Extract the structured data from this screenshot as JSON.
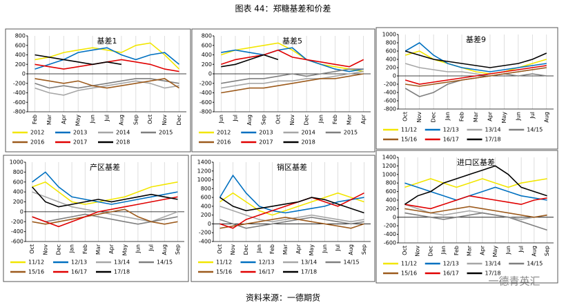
{
  "title": "图表 44：郑糖基差和价差",
  "source": "资料来源：一德期货",
  "watermark": "一德青英汇",
  "chart_data": [
    {
      "type": "line",
      "title": "基差1",
      "categories": [
        "Feb",
        "Mar",
        "Apr",
        "May",
        "Jun",
        "Jul",
        "Aug",
        "Sep",
        "Oct",
        "Nov",
        "Dec"
      ],
      "ylim": [
        -800,
        800
      ],
      "yticks": [
        -800,
        -600,
        -400,
        -200,
        0,
        200,
        400,
        600,
        800
      ],
      "grid": "x",
      "series": [
        {
          "name": "2012",
          "color": "#f2e600",
          "values": [
            300,
            350,
            450,
            500,
            550,
            500,
            450,
            600,
            650,
            400,
            100
          ]
        },
        {
          "name": "2013",
          "color": "#0070c0",
          "values": [
            100,
            200,
            300,
            450,
            500,
            550,
            400,
            300,
            400,
            450,
            200
          ]
        },
        {
          "name": "2014",
          "color": "#a6a6a6",
          "values": [
            -300,
            -400,
            -450,
            -350,
            -300,
            -250,
            -200,
            -150,
            -200,
            -300,
            -250
          ]
        },
        {
          "name": "2015",
          "color": "#7f7f7f",
          "values": [
            -200,
            -300,
            -250,
            -300,
            -250,
            -200,
            -150,
            -100,
            -100,
            -150,
            -200
          ]
        },
        {
          "name": "2016",
          "color": "#9c5a1c",
          "values": [
            -100,
            -150,
            -200,
            -150,
            -250,
            -300,
            -250,
            -200,
            -150,
            -100,
            -300
          ]
        },
        {
          "name": "2017",
          "color": "#e00000",
          "values": [
            200,
            150,
            100,
            150,
            200,
            250,
            300,
            250,
            200,
            100,
            50
          ]
        },
        {
          "name": "2018",
          "color": "#000000",
          "values": [
            400,
            350,
            300,
            250,
            200,
            250,
            200,
            null,
            null,
            null,
            null
          ]
        }
      ]
    },
    {
      "type": "line",
      "title": "基差5",
      "categories": [
        "Jun",
        "Jul",
        "Aug",
        "Sep",
        "Oct",
        "Nov",
        "Dec",
        "Jan",
        "Feb",
        "Mar",
        "Apr"
      ],
      "ylim": [
        -800,
        800
      ],
      "yticks": [
        -800,
        -600,
        -400,
        -200,
        0,
        200,
        400,
        600,
        800
      ],
      "grid": "x",
      "series": [
        {
          "name": "2012",
          "color": "#f2e600",
          "values": [
            400,
            500,
            550,
            600,
            650,
            500,
            300,
            200,
            150,
            100,
            50
          ]
        },
        {
          "name": "2013",
          "color": "#0070c0",
          "values": [
            450,
            500,
            450,
            400,
            500,
            550,
            300,
            200,
            100,
            50,
            100
          ]
        },
        {
          "name": "2014",
          "color": "#a6a6a6",
          "values": [
            -300,
            -250,
            -200,
            -200,
            -150,
            -150,
            -100,
            -100,
            -50,
            0,
            50
          ]
        },
        {
          "name": "2015",
          "color": "#7f7f7f",
          "values": [
            -200,
            -150,
            -100,
            -100,
            -50,
            0,
            -50,
            0,
            50,
            100,
            100
          ]
        },
        {
          "name": "2016",
          "color": "#9c5a1c",
          "values": [
            -400,
            -350,
            -300,
            -300,
            -250,
            -200,
            -150,
            -100,
            -100,
            -50,
            0
          ]
        },
        {
          "name": "2017",
          "color": "#e00000",
          "values": [
            200,
            300,
            350,
            400,
            500,
            350,
            300,
            250,
            200,
            150,
            300
          ]
        },
        {
          "name": "2018",
          "color": "#000000",
          "values": [
            150,
            200,
            300,
            400,
            300,
            null,
            null,
            null,
            null,
            null,
            null
          ]
        }
      ]
    },
    {
      "type": "line",
      "title": "基差9",
      "categories": [
        "Oct",
        "Nov",
        "Dec",
        "Jan",
        "Feb",
        "Mar",
        "Apr",
        "May",
        "Jun",
        "Jul",
        "Aug"
      ],
      "ylim": [
        -800,
        1000
      ],
      "yticks": [
        -800,
        -600,
        -400,
        -200,
        0,
        200,
        400,
        600,
        800,
        1000
      ],
      "grid": "x",
      "series": [
        {
          "name": "11/12",
          "color": "#f2e600",
          "values": [
            500,
            600,
            400,
            300,
            200,
            100,
            50,
            100,
            200,
            300,
            400
          ]
        },
        {
          "name": "12/13",
          "color": "#0070c0",
          "values": [
            600,
            800,
            500,
            300,
            200,
            150,
            100,
            150,
            200,
            250,
            300
          ]
        },
        {
          "name": "13/14",
          "color": "#a6a6a6",
          "values": [
            300,
            200,
            150,
            100,
            100,
            50,
            0,
            50,
            100,
            150,
            200
          ]
        },
        {
          "name": "14/15",
          "color": "#7f7f7f",
          "values": [
            -300,
            -500,
            -400,
            -200,
            -100,
            -50,
            0,
            50,
            0,
            50,
            0
          ]
        },
        {
          "name": "15/16",
          "color": "#9c5a1c",
          "values": [
            -200,
            -250,
            -200,
            -150,
            -100,
            -50,
            0,
            50,
            100,
            150,
            200
          ]
        },
        {
          "name": "16/17",
          "color": "#e00000",
          "values": [
            -100,
            -200,
            -150,
            -100,
            -50,
            0,
            50,
            100,
            150,
            200,
            250
          ]
        },
        {
          "name": "17/18",
          "color": "#000000",
          "values": [
            600,
            500,
            400,
            350,
            300,
            250,
            200,
            250,
            300,
            400,
            550
          ]
        }
      ]
    },
    {
      "type": "line",
      "title": "产区基差",
      "categories": [
        "Oct",
        "Nov",
        "Dec",
        "Jan",
        "Feb",
        "Mar",
        "Apr",
        "May",
        "Jun",
        "Jul",
        "Aug",
        "Sep"
      ],
      "ylim": [
        -600,
        1000
      ],
      "yticks": [
        -600,
        -400,
        -200,
        0,
        200,
        400,
        600,
        800,
        1000
      ],
      "grid": "x",
      "series": [
        {
          "name": "11/12",
          "color": "#f2e600",
          "values": [
            500,
            600,
            400,
            200,
            150,
            200,
            250,
            300,
            400,
            500,
            550,
            600
          ]
        },
        {
          "name": "12/13",
          "color": "#0070c0",
          "values": [
            600,
            800,
            500,
            300,
            250,
            200,
            150,
            200,
            250,
            300,
            350,
            400
          ]
        },
        {
          "name": "13/14",
          "color": "#a6a6a6",
          "values": [
            400,
            300,
            200,
            100,
            50,
            0,
            -50,
            -100,
            -150,
            -200,
            -100,
            0
          ]
        },
        {
          "name": "14/15",
          "color": "#7f7f7f",
          "values": [
            -100,
            -200,
            -150,
            -100,
            -50,
            -100,
            -150,
            -200,
            -250,
            -200,
            -150,
            -100
          ]
        },
        {
          "name": "15/16",
          "color": "#9c5a1c",
          "values": [
            -200,
            -250,
            -200,
            -150,
            -100,
            -50,
            0,
            50,
            -100,
            -200,
            -250,
            -200
          ]
        },
        {
          "name": "16/17",
          "color": "#e00000",
          "values": [
            -100,
            -200,
            -300,
            -200,
            -100,
            0,
            50,
            100,
            150,
            200,
            250,
            300
          ]
        },
        {
          "name": "17/18",
          "color": "#000000",
          "values": [
            500,
            200,
            100,
            150,
            200,
            250,
            200,
            250,
            300,
            350,
            300,
            250
          ]
        }
      ]
    },
    {
      "type": "line",
      "title": "销区基差",
      "categories": [
        "Oct",
        "Nov",
        "Dec",
        "Jan",
        "Feb",
        "Mar",
        "Apr",
        "May",
        "Jun",
        "Jul",
        "Aug",
        "Sep"
      ],
      "ylim": [
        -400,
        1400
      ],
      "yticks": [
        -400,
        -200,
        0,
        200,
        400,
        600,
        800,
        1000,
        1200,
        1400
      ],
      "grid": "x",
      "series": [
        {
          "name": "11/12",
          "color": "#f2e600",
          "values": [
            500,
            700,
            500,
            300,
            200,
            300,
            400,
            500,
            600,
            700,
            600,
            500
          ]
        },
        {
          "name": "12/13",
          "color": "#0070c0",
          "values": [
            600,
            1100,
            700,
            400,
            300,
            250,
            300,
            350,
            400,
            500,
            550,
            600
          ]
        },
        {
          "name": "13/14",
          "color": "#a6a6a6",
          "values": [
            400,
            300,
            200,
            100,
            50,
            100,
            150,
            200,
            150,
            100,
            50,
            100
          ]
        },
        {
          "name": "14/15",
          "color": "#7f7f7f",
          "values": [
            100,
            0,
            -100,
            -50,
            0,
            50,
            100,
            150,
            100,
            50,
            0,
            50
          ]
        },
        {
          "name": "15/16",
          "color": "#9c5a1c",
          "values": [
            -100,
            -50,
            0,
            50,
            100,
            150,
            100,
            50,
            0,
            -50,
            -100,
            0
          ]
        },
        {
          "name": "16/17",
          "color": "#e00000",
          "values": [
            0,
            -100,
            100,
            200,
            300,
            400,
            500,
            600,
            500,
            400,
            550,
            700
          ]
        },
        {
          "name": "17/18",
          "color": "#000000",
          "values": [
            600,
            400,
            300,
            350,
            400,
            450,
            500,
            600,
            550,
            450,
            350,
            250
          ]
        }
      ]
    },
    {
      "type": "line",
      "title": "进口区基差",
      "categories": [
        "Oct",
        "Nov",
        "Dec",
        "Jan",
        "Feb",
        "Mar",
        "Apr",
        "May",
        "Jun",
        "Jul",
        "Aug",
        "Sep"
      ],
      "ylim": [
        -600,
        1400
      ],
      "yticks": [
        -600,
        -400,
        -200,
        0,
        200,
        400,
        600,
        800,
        1000,
        1200,
        1400
      ],
      "grid": "x",
      "series": [
        {
          "name": "11/12",
          "color": "#f2e600",
          "values": [
            700,
            800,
            900,
            800,
            700,
            800,
            900,
            800,
            700,
            800,
            850,
            900
          ]
        },
        {
          "name": "12/13",
          "color": "#0070c0",
          "values": [
            800,
            700,
            600,
            500,
            400,
            500,
            600,
            700,
            600,
            500,
            450,
            400
          ]
        },
        {
          "name": "13/14",
          "color": "#a6a6a6",
          "values": [
            300,
            200,
            100,
            50,
            100,
            150,
            100,
            50,
            0,
            -50,
            0,
            50
          ]
        },
        {
          "name": "14/15",
          "color": "#7f7f7f",
          "values": [
            100,
            50,
            0,
            -50,
            0,
            50,
            100,
            50,
            0,
            -100,
            -200,
            -300
          ]
        },
        {
          "name": "15/16",
          "color": "#9c5a1c",
          "values": [
            200,
            150,
            100,
            150,
            200,
            250,
            200,
            150,
            100,
            50,
            0,
            50
          ]
        },
        {
          "name": "16/17",
          "color": "#e00000",
          "values": [
            300,
            250,
            200,
            300,
            400,
            500,
            450,
            400,
            350,
            300,
            400,
            450
          ]
        },
        {
          "name": "17/18",
          "color": "#000000",
          "values": [
            300,
            500,
            600,
            800,
            900,
            1000,
            1100,
            1200,
            1000,
            700,
            600,
            500
          ]
        }
      ]
    }
  ]
}
